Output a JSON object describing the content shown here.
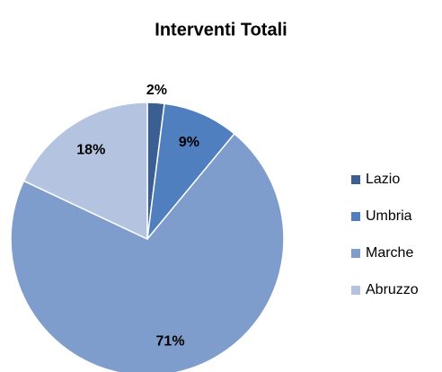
{
  "chart_data": {
    "type": "pie",
    "title": "Interventi Totali",
    "categories": [
      "Lazio",
      "Umbria",
      "Marche",
      "Abruzzo"
    ],
    "values": [
      2,
      9,
      71,
      18
    ],
    "value_labels": [
      "2%",
      "9%",
      "71%",
      "18%"
    ],
    "colors": [
      "#3b5f92",
      "#4f7fbe",
      "#7f9dcc",
      "#b3c3e0"
    ],
    "legend": "right"
  }
}
